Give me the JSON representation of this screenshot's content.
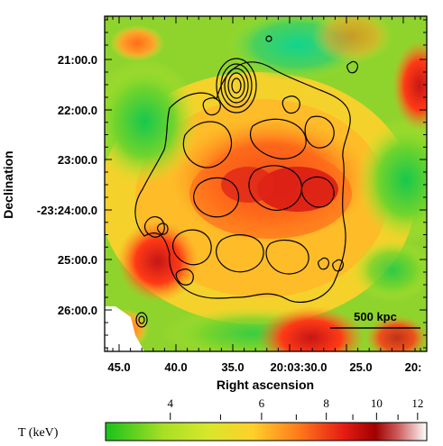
{
  "chart_data": {
    "type": "heatmap",
    "description_in_image": {
      "title": "",
      "xlabel": "Right ascension",
      "ylabel": "Declination",
      "scale_bar_label": "500 kpc",
      "colorbar_label": "T (keV)"
    },
    "x_ticks": [
      "45.0",
      "40.0",
      "35.0",
      "20:03:30.0",
      "25.0",
      "20:"
    ],
    "y_ticks": [
      "21:00.0",
      "22:00.0",
      "23:00.0",
      "-23:24:00.0",
      "25:00.0",
      "26:00.0"
    ],
    "colorbar": {
      "range_keV": [
        3.0,
        12.5
      ],
      "labeled_ticks": [
        4,
        6,
        8,
        10,
        12
      ],
      "minor_ticks": [
        5,
        7,
        9,
        11
      ],
      "colors": {
        "low": "#19c21b",
        "mid_low": "#d8e72c",
        "mid": "#ffcf2a",
        "mid_high": "#ff7b1b",
        "high": "#e61c14",
        "very_high": "#8f0000",
        "max": "#ffffff"
      }
    },
    "temperature_map": {
      "comment": "Smoothed temperature map of a galaxy cluster with X-ray contours; dominant structure is a hot central band and cooler outskirts.",
      "features": [
        {
          "name": "hot_band",
          "label": "",
          "kind": "hot"
        },
        {
          "name": "west_hot_spot",
          "label": "",
          "kind": "hot"
        },
        {
          "name": "south_east_hot_spot",
          "label": "",
          "kind": "hot"
        },
        {
          "name": "north_cool_region",
          "label": "",
          "kind": "cool"
        },
        {
          "name": "south_cool_region",
          "label": "",
          "kind": "cool"
        }
      ]
    },
    "contours": {
      "comment": "Black contour lines outlining X-ray emission",
      "levels": 10
    },
    "grid": false,
    "legend": "none"
  }
}
